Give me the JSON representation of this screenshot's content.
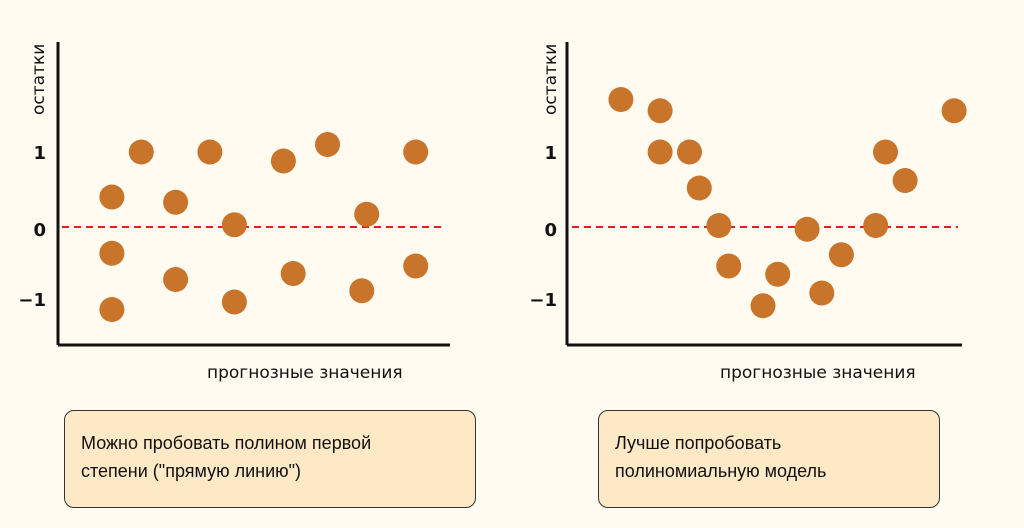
{
  "colors": {
    "point": "#c8742a",
    "zero_line": "#e02020",
    "axis": "#111111",
    "note_bg": "#fde9c6"
  },
  "chart_data": [
    {
      "type": "scatter",
      "ylabel": "остатки",
      "xlabel": "прогнозные значения",
      "yticks": [
        "1",
        "0",
        "−1"
      ],
      "ytick_values": [
        1,
        0,
        -1
      ],
      "reference_line": {
        "y": 0,
        "style": "dashed"
      },
      "points": [
        {
          "x": 1.1,
          "y": 0.4
        },
        {
          "x": 1.1,
          "y": -0.35
        },
        {
          "x": 1.1,
          "y": -1.1
        },
        {
          "x": 1.7,
          "y": 1.0
        },
        {
          "x": 2.4,
          "y": 0.33
        },
        {
          "x": 2.4,
          "y": -0.7
        },
        {
          "x": 3.1,
          "y": 1.0
        },
        {
          "x": 3.6,
          "y": 0.03
        },
        {
          "x": 3.6,
          "y": -1.0
        },
        {
          "x": 4.6,
          "y": 0.88
        },
        {
          "x": 4.8,
          "y": -0.62
        },
        {
          "x": 5.5,
          "y": 1.1
        },
        {
          "x": 6.2,
          "y": -0.85
        },
        {
          "x": 6.3,
          "y": 0.17
        },
        {
          "x": 7.3,
          "y": -0.52
        },
        {
          "x": 7.3,
          "y": 1.0
        }
      ]
    },
    {
      "type": "scatter",
      "ylabel": "остатки",
      "xlabel": "прогнозные значения",
      "yticks": [
        "1",
        "0",
        "−1"
      ],
      "ytick_values": [
        1,
        0,
        -1
      ],
      "reference_line": {
        "y": 0,
        "style": "dashed"
      },
      "points": [
        {
          "x": 1.1,
          "y": 1.7
        },
        {
          "x": 1.9,
          "y": 1.55
        },
        {
          "x": 1.9,
          "y": 1.0
        },
        {
          "x": 2.5,
          "y": 1.0
        },
        {
          "x": 2.7,
          "y": 0.52
        },
        {
          "x": 3.1,
          "y": 0.02
        },
        {
          "x": 3.3,
          "y": -0.52
        },
        {
          "x": 4.0,
          "y": -1.05
        },
        {
          "x": 4.3,
          "y": -0.63
        },
        {
          "x": 4.9,
          "y": -0.03
        },
        {
          "x": 5.2,
          "y": -0.88
        },
        {
          "x": 5.6,
          "y": -0.37
        },
        {
          "x": 6.3,
          "y": 0.02
        },
        {
          "x": 6.5,
          "y": 1.0
        },
        {
          "x": 6.9,
          "y": 0.62
        },
        {
          "x": 7.9,
          "y": 1.55
        }
      ]
    }
  ],
  "notes": [
    "Можно пробовать полином первой\nстепени (\"прямую линию\")",
    "Лучше попробовать\nполиномиальную модель"
  ]
}
